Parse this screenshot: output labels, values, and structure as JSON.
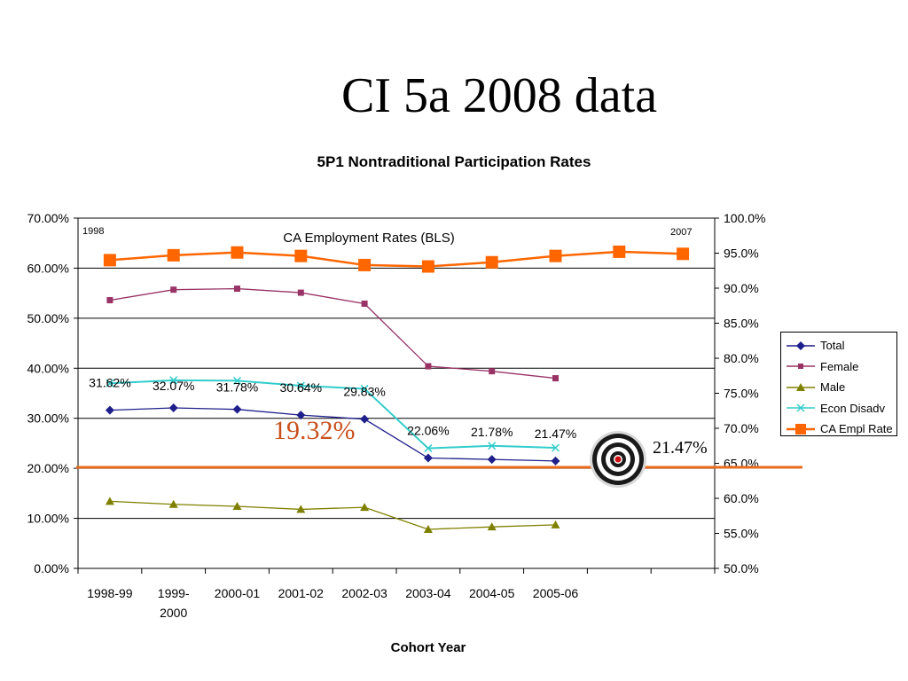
{
  "slide": {
    "title": "CI 5a 2008 data"
  },
  "annotations": {
    "year_start": "1998",
    "year_end": "2007",
    "bls_label": "CA Employment Rates (BLS)",
    "big_value": "19.32%",
    "target_value": "21.47%"
  },
  "colors": {
    "total": "#1f1f8c",
    "female": "#993366",
    "male": "#808000",
    "econ": "#33cccc",
    "ca": "#ff6600",
    "target_line": "#e86a1e",
    "big_label": "#c8501e"
  },
  "icons": [
    "target-icon"
  ],
  "chart_data": {
    "type": "line",
    "title": "5P1 Nontraditional Participation Rates",
    "xlabel": "Cohort Year",
    "ylabel": "",
    "x_tick_labels": [
      "1998-99",
      "1999-\n2000",
      "2000-01",
      "2001-02",
      "2002-03",
      "2003-04",
      "2004-05",
      "2005-06",
      "",
      ""
    ],
    "left_axis": {
      "ylim": [
        0,
        70
      ],
      "ticks": [
        "0.00%",
        "10.00%",
        "20.00%",
        "30.00%",
        "40.00%",
        "50.00%",
        "60.00%",
        "70.00%"
      ]
    },
    "right_axis": {
      "ylim": [
        50,
        100
      ],
      "ticks": [
        "50.0%",
        "55.0%",
        "60.0%",
        "65.0%",
        "70.0%",
        "75.0%",
        "80.0%",
        "85.0%",
        "90.0%",
        "95.0%",
        "100.0%"
      ]
    },
    "grid": true,
    "legend_position": "right",
    "series": [
      {
        "name": "Total",
        "axis": "left",
        "color_key": "total",
        "marker": "diamond",
        "values": [
          31.62,
          32.07,
          31.78,
          30.64,
          29.83,
          22.06,
          21.78,
          21.47
        ],
        "labels": [
          "31.62%",
          "32.07%",
          "31.78%",
          "30.64%",
          "29.83%",
          "22.06%",
          "21.78%",
          "21.47%"
        ]
      },
      {
        "name": "Female",
        "axis": "left",
        "color_key": "female",
        "marker": "square",
        "values": [
          53.6,
          55.7,
          55.9,
          55.1,
          52.9,
          40.4,
          39.4,
          38.0
        ]
      },
      {
        "name": "Male",
        "axis": "left",
        "color_key": "male",
        "marker": "triangle",
        "values": [
          13.4,
          12.8,
          12.4,
          11.8,
          12.2,
          7.8,
          8.3,
          8.7
        ]
      },
      {
        "name": "Econ Disadv",
        "axis": "left",
        "color_key": "econ",
        "marker": "x",
        "values": [
          37.0,
          37.6,
          37.5,
          36.5,
          35.9,
          24.0,
          24.5,
          24.1
        ]
      },
      {
        "name": "CA Empl Rate",
        "axis": "right",
        "color_key": "ca",
        "marker": "bigsquare",
        "values": [
          94.0,
          94.7,
          95.1,
          94.6,
          93.3,
          93.1,
          93.7,
          94.6,
          95.2,
          94.9
        ]
      }
    ],
    "reference_line": {
      "axis": "left",
      "value": 20.2
    }
  }
}
